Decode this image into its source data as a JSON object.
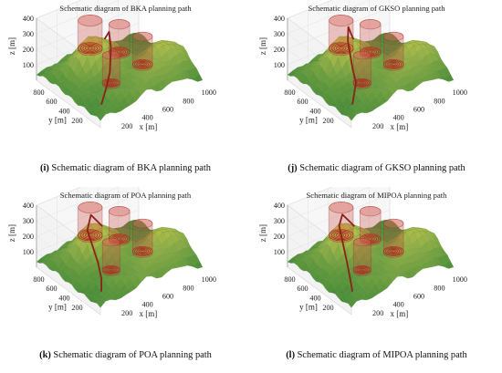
{
  "figure": {
    "panels": [
      {
        "id": "i",
        "title": "Schematic diagram of BKA planning path",
        "caption_letter": "(i)",
        "caption_text": " Schematic diagram of BKA planning path"
      },
      {
        "id": "j",
        "title": "Schematic diagram of GKSO planning path",
        "caption_letter": "(j)",
        "caption_text": " Schematic diagram of GKSO planning path"
      },
      {
        "id": "k",
        "title": "Schematic diagram of POA planning path",
        "caption_letter": "(k)",
        "caption_text": " Schematic diagram of POA planning path"
      },
      {
        "id": "l",
        "title": "Schematic diagram of MIPOA planning path",
        "caption_letter": "(l)",
        "caption_text": " Schematic diagram of MIPOA planning path"
      }
    ]
  },
  "chart_data": [
    {
      "type": "surface3d",
      "title": "Schematic diagram of BKA planning path",
      "xlabel": "x [m]",
      "ylabel": "y [m]",
      "zlabel": "z [m]",
      "xticks": [
        "200",
        "400",
        "600",
        "800",
        "1000"
      ],
      "yticks": [
        "200",
        "400",
        "600",
        "800"
      ],
      "zticks": [
        "100",
        "200",
        "300",
        "400"
      ],
      "xlim": [
        0,
        1000
      ],
      "ylim": [
        0,
        1000
      ],
      "zlim": [
        0,
        400
      ],
      "threats": [
        "cylinder",
        "cylinder",
        "cylinder",
        "cylinder"
      ],
      "path": "BKA",
      "colors": {
        "terrain": "#5fa84a",
        "path": "#8b2218",
        "threat": "#c0392b"
      }
    },
    {
      "type": "surface3d",
      "title": "Schematic diagram of GKSO planning path",
      "xlabel": "x [m]",
      "ylabel": "y [m]",
      "zlabel": "z [m]",
      "xticks": [
        "200",
        "400",
        "600",
        "800",
        "1000"
      ],
      "yticks": [
        "200",
        "400",
        "600",
        "800"
      ],
      "zticks": [
        "100",
        "200",
        "300",
        "400"
      ],
      "xlim": [
        0,
        1000
      ],
      "ylim": [
        0,
        1000
      ],
      "zlim": [
        0,
        400
      ],
      "threats": [
        "cylinder",
        "cylinder",
        "cylinder",
        "cylinder"
      ],
      "path": "GKSO",
      "colors": {
        "terrain": "#5fa84a",
        "path": "#8b2218",
        "threat": "#c0392b"
      }
    },
    {
      "type": "surface3d",
      "title": "Schematic diagram of POA planning path",
      "xlabel": "x [m]",
      "ylabel": "y [m]",
      "zlabel": "z [m]",
      "xticks": [
        "200",
        "400",
        "600",
        "800",
        "1000"
      ],
      "yticks": [
        "200",
        "400",
        "600",
        "800"
      ],
      "zticks": [
        "100",
        "200",
        "300",
        "400"
      ],
      "xlim": [
        0,
        1000
      ],
      "ylim": [
        0,
        1000
      ],
      "zlim": [
        0,
        400
      ],
      "threats": [
        "cylinder",
        "cylinder",
        "cylinder",
        "cylinder"
      ],
      "path": "POA",
      "colors": {
        "terrain": "#5fa84a",
        "path": "#8b2218",
        "threat": "#c0392b"
      }
    },
    {
      "type": "surface3d",
      "title": "Schematic diagram of MIPOA planning path",
      "xlabel": "x [m]",
      "ylabel": "y [m]",
      "zlabel": "z [m]",
      "xticks": [
        "200",
        "400",
        "600",
        "800",
        "1000"
      ],
      "yticks": [
        "200",
        "400",
        "600",
        "800"
      ],
      "zticks": [
        "100",
        "200",
        "300",
        "400"
      ],
      "xlim": [
        0,
        1000
      ],
      "ylim": [
        0,
        1000
      ],
      "zlim": [
        0,
        400
      ],
      "threats": [
        "cylinder",
        "cylinder",
        "cylinder",
        "cylinder"
      ],
      "path": "MIPOA",
      "colors": {
        "terrain": "#5fa84a",
        "path": "#8b2218",
        "threat": "#c0392b"
      }
    }
  ]
}
